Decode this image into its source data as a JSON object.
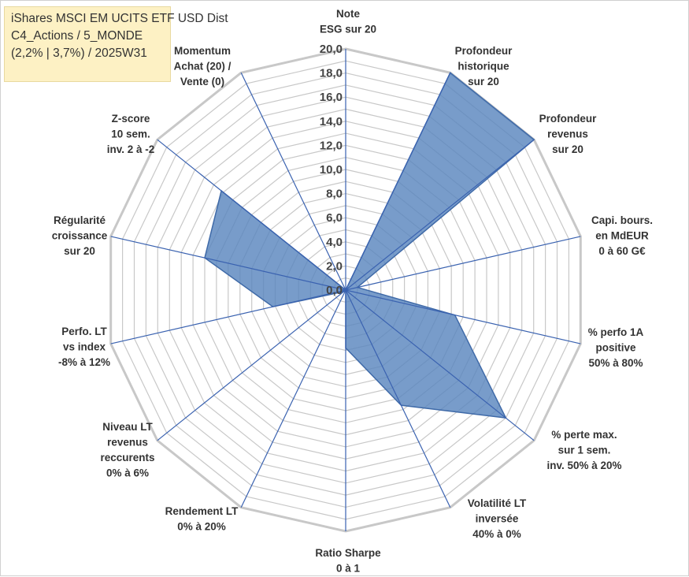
{
  "title": {
    "line1": "iShares MSCI EM UCITS ETF USD Dist",
    "line2": "C4_Actions / 5_MONDE",
    "line3": "(2,2% | 3,7%) / 2025W31"
  },
  "colors": {
    "fill": "#5a86be",
    "stroke": "#3f6aa8",
    "spoke": "#3a62b0",
    "grid": "#c8c8c8"
  },
  "chart_data": {
    "type": "radar",
    "title": "",
    "rlim": [
      0,
      20
    ],
    "ticks": [
      "0,0",
      "2,0",
      "4,0",
      "6,0",
      "8,0",
      "10,0",
      "12,0",
      "14,0",
      "16,0",
      "18,0",
      "20,0"
    ],
    "grid": true,
    "categories": [
      [
        "Note",
        "ESG sur 20"
      ],
      [
        "Profondeur",
        "historique",
        "sur 20"
      ],
      [
        "Profondeur",
        "revenus",
        "sur 20"
      ],
      [
        "Capi. bours.",
        "en MdEUR",
        "0 à 60 G€"
      ],
      [
        "% perfo 1A",
        "positive",
        "50% à 80%"
      ],
      [
        "% perte max.",
        "sur 1 sem.",
        "inv. 50% à 20%"
      ],
      [
        "Volatilité LT",
        "inversée",
        "40% à 0%"
      ],
      [
        "Ratio Sharpe",
        "0 à 1"
      ],
      [
        "Rendement LT",
        "0% à 20%"
      ],
      [
        "Niveau LT",
        "revenus",
        "reccurents",
        "0% à 6%"
      ],
      [
        "Perfo. LT",
        "vs index",
        "-8% à 12%"
      ],
      [
        "Régularité",
        "croissance",
        "sur 20"
      ],
      [
        "Z-score",
        "10 sem.",
        "inv. 2 à -2"
      ],
      [
        "Momentum",
        "Achat (20) /",
        "Vente (0)"
      ]
    ],
    "series": [
      {
        "values": [
          0,
          20,
          20,
          1,
          9.3,
          17,
          10.6,
          4.8,
          0,
          0.2,
          6.2,
          12,
          13.2,
          0
        ]
      }
    ]
  }
}
